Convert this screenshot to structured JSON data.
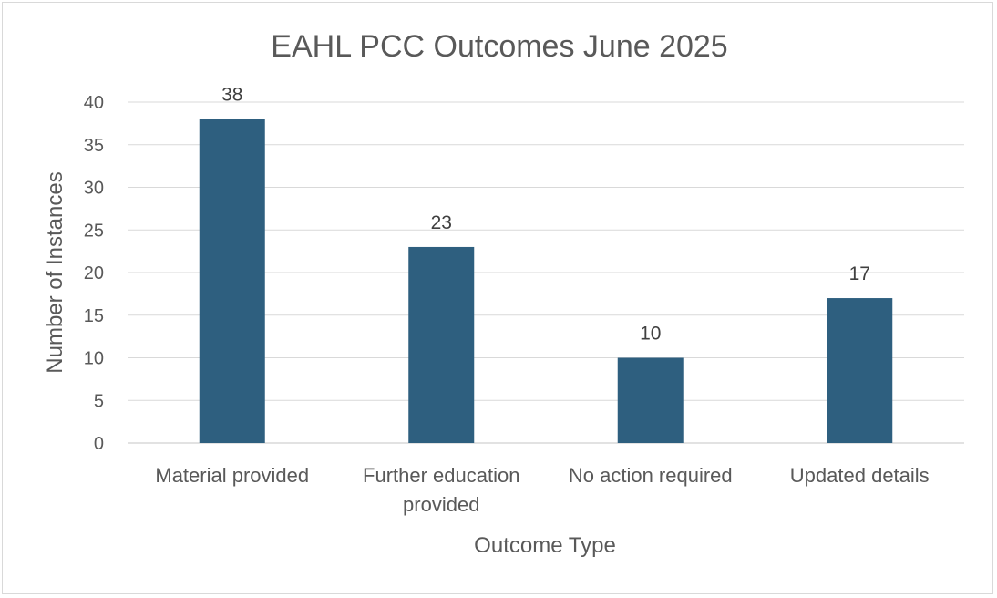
{
  "chart_data": {
    "type": "bar",
    "title": "EAHL PCC Outcomes June 2025",
    "xlabel": "Outcome Type",
    "ylabel": "Number of Instances",
    "categories": [
      [
        "Material provided"
      ],
      [
        "Further education",
        "provided"
      ],
      [
        "No action required"
      ],
      [
        "Updated details"
      ]
    ],
    "values": [
      38,
      23,
      10,
      17
    ],
    "ylim": [
      0,
      40
    ],
    "yticks": [
      0,
      5,
      10,
      15,
      20,
      25,
      30,
      35,
      40
    ],
    "grid": true,
    "legend": "none",
    "colors": {
      "bar": "#2e5f7f"
    }
  }
}
